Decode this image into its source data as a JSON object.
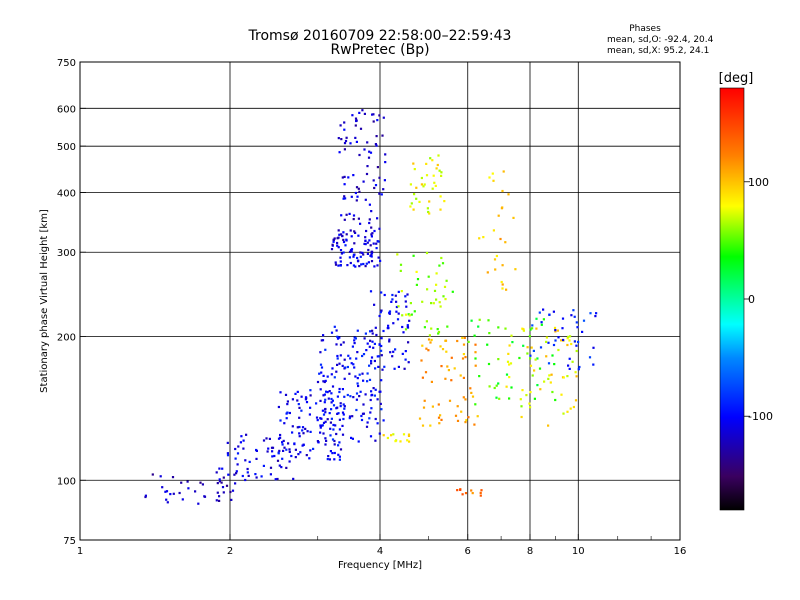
{
  "chart_data": {
    "type": "scatter",
    "title": "Tromsø 20160709 22:58:00–22:59:43",
    "subtitle": "RwPretec (Bp)",
    "xlabel": "Frequency [MHz]",
    "ylabel": "Stationary phase Virtual Height [km]",
    "xscale": "log",
    "yscale": "log",
    "xlim": [
      1,
      16
    ],
    "ylim": [
      75,
      750
    ],
    "xticks": [
      1,
      2,
      4,
      6,
      8,
      10,
      16
    ],
    "xtick_labels": [
      "1",
      "2",
      "4",
      "6",
      "8",
      "10",
      "16"
    ],
    "yticks": [
      75,
      100,
      200,
      300,
      400,
      500,
      600,
      750
    ],
    "ytick_labels": [
      "75",
      "100",
      "200",
      "300",
      "400",
      "500",
      "600",
      "750"
    ],
    "grid": true,
    "phase_stats": {
      "heading": "Phases",
      "o_line": "mean, sd,O: -92.4, 20.4",
      "x_line": "mean, sd,X:  95.2, 24.1"
    },
    "colorbar": {
      "label": "[deg]",
      "range": [
        -180,
        180
      ],
      "ticks": [
        100,
        0,
        -100
      ],
      "tick_labels": [
        "100",
        "0",
        "-100"
      ],
      "colormap": "rainbow-black-blue-cyan-green-yellow-red"
    },
    "clusters": [
      {
        "phase": -120,
        "count": 40,
        "x": [
          1.35,
          2.05
        ],
        "y": [
          88,
          104
        ]
      },
      {
        "phase": -110,
        "count": 60,
        "x": [
          1.9,
          2.7
        ],
        "y": [
          100,
          125
        ]
      },
      {
        "phase": -105,
        "count": 120,
        "x": [
          2.5,
          3.4
        ],
        "y": [
          110,
          155
        ]
      },
      {
        "phase": -100,
        "count": 160,
        "x": [
          3.0,
          4.1
        ],
        "y": [
          120,
          210
        ]
      },
      {
        "phase": -110,
        "count": 90,
        "x": [
          3.2,
          4.0
        ],
        "y": [
          280,
          330
        ]
      },
      {
        "phase": -115,
        "count": 90,
        "x": [
          3.3,
          4.1
        ],
        "y": [
          330,
          600
        ]
      },
      {
        "phase": -105,
        "count": 60,
        "x": [
          3.8,
          4.6
        ],
        "y": [
          170,
          250
        ]
      },
      {
        "phase": 80,
        "count": 35,
        "x": [
          4.6,
          5.4
        ],
        "y": [
          360,
          480
        ]
      },
      {
        "phase": 60,
        "count": 45,
        "x": [
          4.3,
          5.6
        ],
        "y": [
          200,
          300
        ]
      },
      {
        "phase": 110,
        "count": 60,
        "x": [
          4.8,
          6.3
        ],
        "y": [
          130,
          200
        ]
      },
      {
        "phase": 40,
        "count": 45,
        "x": [
          6.0,
          9.0
        ],
        "y": [
          140,
          220
        ]
      },
      {
        "phase": 85,
        "count": 60,
        "x": [
          7.0,
          10.0
        ],
        "y": [
          130,
          210
        ]
      },
      {
        "phase": -90,
        "count": 40,
        "x": [
          8.0,
          11.0
        ],
        "y": [
          170,
          230
        ]
      },
      {
        "phase": 90,
        "count": 12,
        "x": [
          4.0,
          4.6
        ],
        "y": [
          120,
          125
        ]
      },
      {
        "phase": 130,
        "count": 10,
        "x": [
          5.6,
          6.4
        ],
        "y": [
          92,
          96
        ]
      },
      {
        "phase": 100,
        "count": 25,
        "x": [
          6.3,
          7.5
        ],
        "y": [
          250,
          450
        ]
      }
    ]
  }
}
